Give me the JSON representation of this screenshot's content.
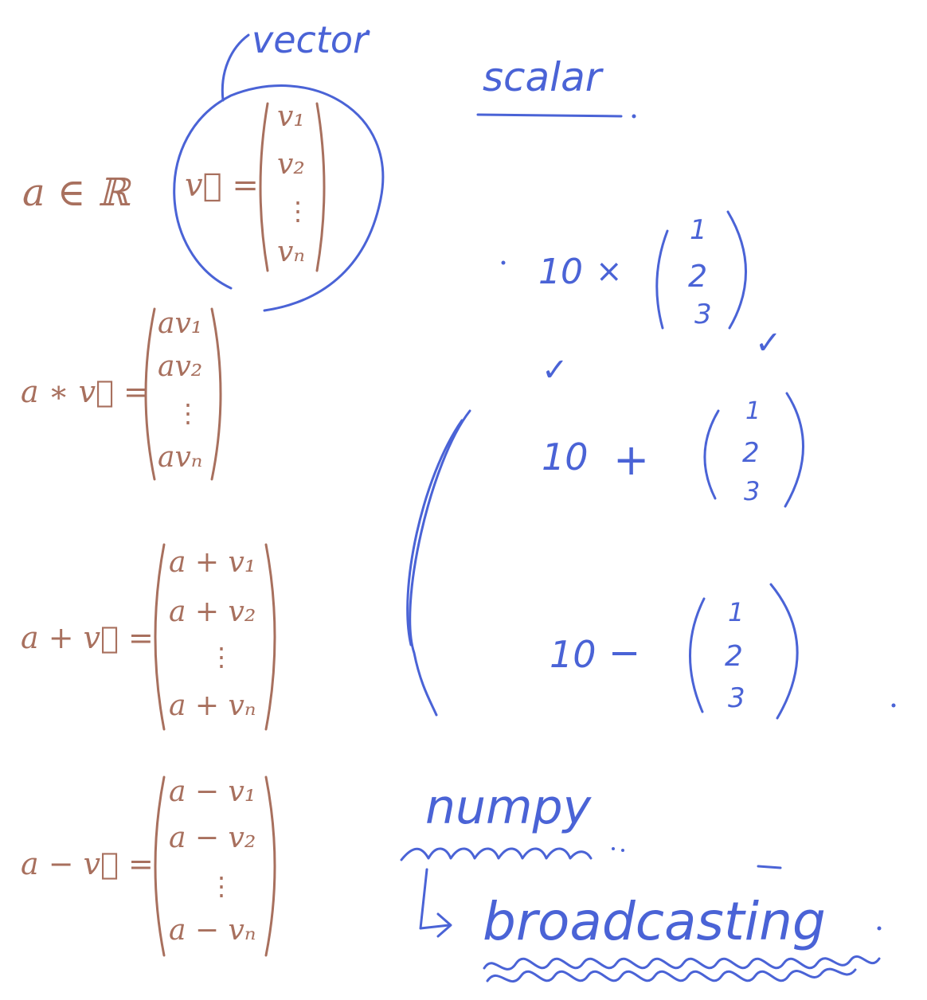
{
  "typeset": {
    "set_membership": "a ∈ ℝ",
    "vector_def": {
      "lhs": "v⃗ =",
      "entries": [
        "v₁",
        "v₂",
        "⋮",
        "vₙ"
      ]
    },
    "scalar_times": {
      "lhs": "a ∗ v⃗ =",
      "entries": [
        "av₁",
        "av₂",
        "⋮",
        "avₙ"
      ]
    },
    "scalar_plus": {
      "lhs": "a + v⃗ =",
      "entries": [
        "a + v₁",
        "a + v₂",
        "⋮",
        "a + vₙ"
      ]
    },
    "scalar_minus": {
      "lhs": "a − v⃗ =",
      "entries": [
        "a − v₁",
        "a − v₂",
        "⋮",
        "a − vₙ"
      ]
    }
  },
  "handwriting": {
    "vector_label": "vector",
    "scalar_label": "scalar",
    "examples": {
      "multiply": {
        "scalar": "10",
        "operator": "×",
        "entries": [
          "1",
          "2",
          "3"
        ],
        "mark": "✓"
      },
      "add": {
        "scalar": "10",
        "operator": "+",
        "entries": [
          "1",
          "2",
          "3"
        ],
        "mark": "✓"
      },
      "subtract": {
        "scalar": "10",
        "operator": "−",
        "entries": [
          "1",
          "2",
          "3"
        ]
      }
    },
    "numpy_label": "numpy",
    "broadcasting_label": "broadcasting"
  },
  "colors": {
    "typeset_math": "#a8705e",
    "pen_ink": "#4a63d6",
    "background": "#ffffff"
  }
}
